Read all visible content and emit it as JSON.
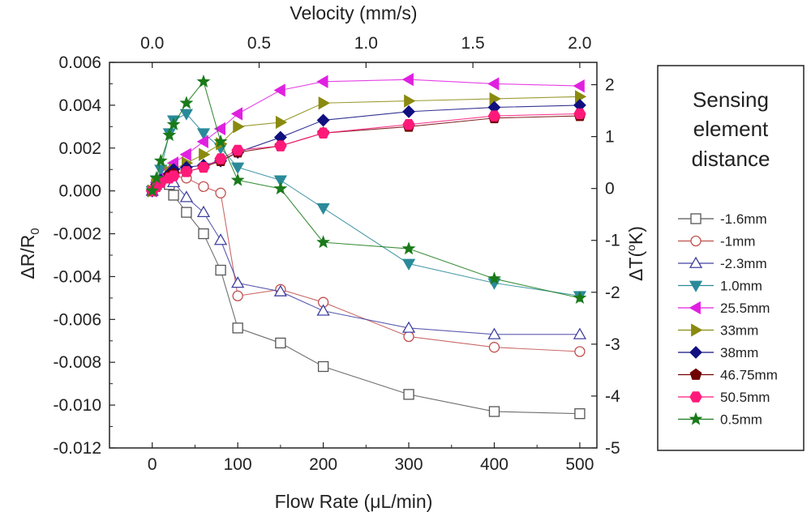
{
  "chart_data": {
    "type": "line",
    "xlabel": "Flow Rate (μL/min)",
    "ylabel": "ΔR/R",
    "ylabel_sub": "0",
    "top_xlabel": "Velocity (mm/s)",
    "right_ylabel": "ΔT(",
    "right_ylabel_sup": "o",
    "right_ylabel_end": "K)",
    "xlim": [
      -50,
      520
    ],
    "ylim": [
      -0.012,
      0.006
    ],
    "x_ticks": [
      0,
      100,
      200,
      300,
      400,
      500
    ],
    "y_ticks": [
      0.006,
      0.004,
      0.002,
      0.0,
      -0.002,
      -0.004,
      -0.006,
      -0.008,
      -0.01,
      -0.012
    ],
    "y_tick_labels": [
      "0.006",
      "0.004",
      "0.002",
      "0.000",
      "-0.002",
      "-0.004",
      "-0.006",
      "-0.008",
      "-0.010",
      "-0.012"
    ],
    "top_ticks": [
      0.0,
      0.5,
      1.0,
      1.5,
      2.0
    ],
    "top_tick_labels": [
      "0.0",
      "0.5",
      "1.0",
      "1.5",
      "2.0"
    ],
    "top_per_x": 250,
    "right_ticks": [
      2,
      1,
      0,
      -1,
      -2,
      -3,
      -4,
      -5
    ],
    "right_tick_labels": [
      "2",
      "1",
      "0",
      "-1",
      "-2",
      "-3",
      "-4",
      "-5"
    ],
    "right_ylim": [
      -5,
      2.43
    ],
    "legend": {
      "title_lines": [
        "Sensing",
        "element",
        "distance"
      ],
      "placement": "right"
    },
    "x": [
      0,
      5,
      10,
      20,
      25,
      40,
      60,
      80,
      100,
      150,
      200,
      300,
      400,
      500
    ],
    "series": [
      {
        "name": "-1.6mm",
        "color": "#555555",
        "marker": "square-open",
        "values": [
          0.0,
          0.0003,
          0.0004,
          0.0003,
          -0.0002,
          -0.001,
          -0.002,
          -0.0037,
          -0.0064,
          -0.0071,
          -0.0082,
          -0.0095,
          -0.0103,
          -0.0104
        ]
      },
      {
        "name": "-1mm",
        "color": "#c0504d",
        "marker": "circle-open",
        "values": [
          0.0,
          0.0003,
          0.0004,
          0.0006,
          0.0007,
          0.0006,
          0.0002,
          -0.0001,
          -0.0049,
          -0.0046,
          -0.0052,
          -0.0068,
          -0.0073,
          -0.0075
        ]
      },
      {
        "name": "-2.3mm",
        "color": "#4040a0",
        "marker": "triangle-up-open",
        "values": [
          0.0,
          0.0004,
          0.0006,
          0.0006,
          0.0004,
          -0.0003,
          -0.001,
          -0.0023,
          -0.0043,
          -0.0047,
          -0.0056,
          -0.0064,
          -0.0067,
          -0.0067
        ]
      },
      {
        "name": "1.0mm",
        "color": "#2a8a9a",
        "marker": "triangle-down",
        "values": [
          0.0,
          0.0005,
          0.001,
          0.0027,
          0.0033,
          0.0036,
          0.0027,
          0.002,
          0.0011,
          0.0005,
          -0.0008,
          -0.0034,
          -0.0043,
          -0.0049
        ]
      },
      {
        "name": "25.5mm",
        "color": "#e020e0",
        "marker": "triangle-left",
        "values": [
          0.0,
          0.0004,
          0.0006,
          0.001,
          0.0013,
          0.0017,
          0.0023,
          0.0029,
          0.0036,
          0.0047,
          0.0051,
          0.0052,
          0.005,
          0.0049
        ]
      },
      {
        "name": "33mm",
        "color": "#8a8a10",
        "marker": "triangle-right",
        "values": [
          0.0,
          0.0003,
          0.0005,
          0.0009,
          0.001,
          0.0013,
          0.0017,
          0.0022,
          0.003,
          0.0032,
          0.0041,
          0.0042,
          0.0043,
          0.0044
        ]
      },
      {
        "name": "38mm",
        "color": "#101080",
        "marker": "diamond",
        "values": [
          0.0,
          0.0003,
          0.0005,
          0.0008,
          0.001,
          0.0011,
          0.0012,
          0.0014,
          0.0018,
          0.0025,
          0.0033,
          0.0037,
          0.0039,
          0.004
        ]
      },
      {
        "name": "46.75mm",
        "color": "#700000",
        "marker": "pentagon",
        "values": [
          0.0,
          0.0002,
          0.0004,
          0.0007,
          0.0008,
          0.0009,
          0.0011,
          0.0014,
          0.0018,
          0.0021,
          0.0027,
          0.003,
          0.0034,
          0.0035
        ]
      },
      {
        "name": "50.5mm",
        "color": "#ff1a7a",
        "marker": "hexagon",
        "values": [
          0.0,
          0.0002,
          0.0004,
          0.0006,
          0.0007,
          0.0009,
          0.0011,
          0.0015,
          0.0019,
          0.0021,
          0.0027,
          0.0031,
          0.0035,
          0.0036
        ]
      },
      {
        "name": "0.5mm",
        "color": "#1a7a1a",
        "marker": "star",
        "values": [
          0.0,
          0.0006,
          0.0014,
          0.0026,
          0.0031,
          0.0041,
          0.0051,
          0.0023,
          0.0005,
          0.0001,
          -0.0024,
          -0.0027,
          -0.0041,
          -0.005
        ]
      }
    ]
  }
}
